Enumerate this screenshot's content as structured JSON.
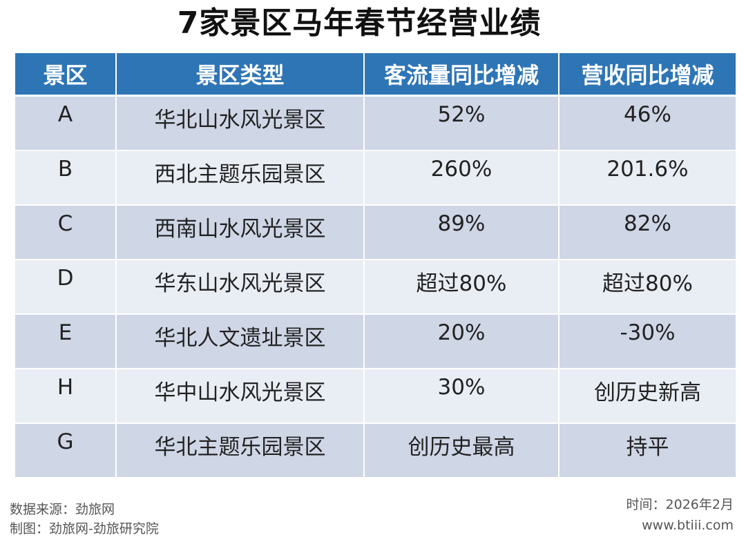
{
  "title": "7家景区马年春节经营业绩",
  "table": {
    "headers": [
      "景区",
      "景区类型",
      "客流量同比增减",
      "营收同比增减"
    ],
    "rows": [
      [
        "A",
        "华北山水风光景区",
        "52%",
        "46%"
      ],
      [
        "B",
        "西北主题乐园景区",
        "260%",
        "201.6%"
      ],
      [
        "C",
        "西南山水风光景区",
        "89%",
        "82%"
      ],
      [
        "D",
        "华东山水风光景区",
        "超过80%",
        "超过80%"
      ],
      [
        "E",
        "华北人文遗址景区",
        "20%",
        "-30%"
      ],
      [
        "H",
        "华中山水风光景区",
        "30%",
        "创历史新高"
      ],
      [
        "G",
        "华北主题乐园景区",
        "创历史最高",
        "持平"
      ]
    ]
  },
  "footer": {
    "source": "数据来源：劲旅网",
    "made_by": "制图：劲旅网-劲旅研究院",
    "time": "时间：2026年2月",
    "website": "www.btiii.com"
  },
  "colors": {
    "header_bg": "#2e75b6",
    "row_odd": "#cfd6e6",
    "row_even": "#e9edf4"
  }
}
